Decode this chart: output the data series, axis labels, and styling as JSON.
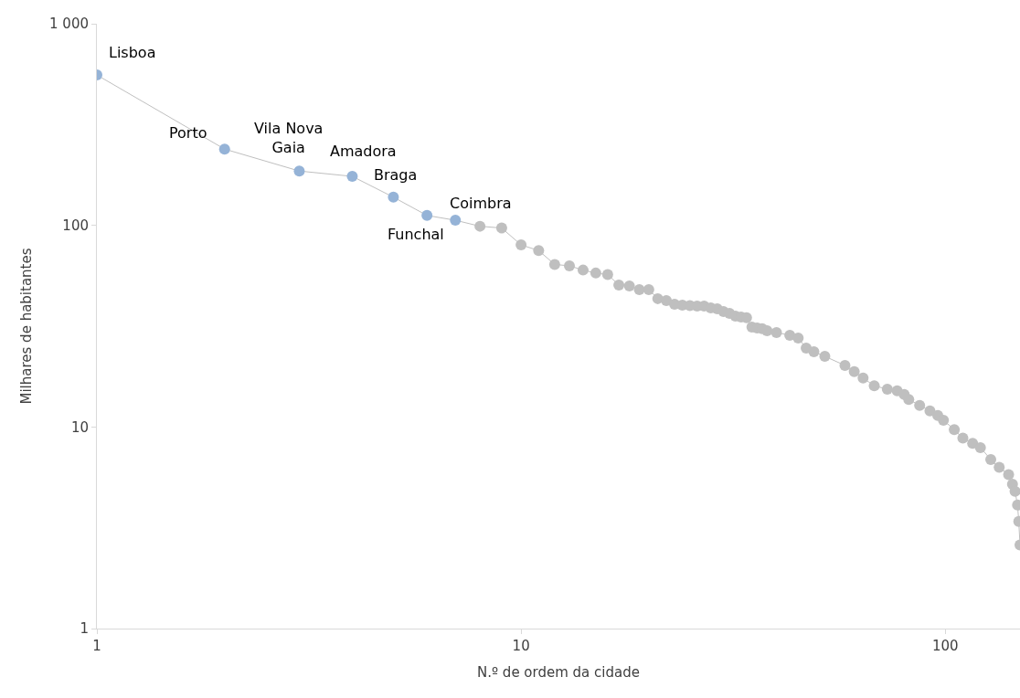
{
  "chart_data": {
    "type": "line",
    "xlabel": "N.º de ordem da cidade",
    "ylabel": "Milhares de habitantes",
    "log": "xy",
    "marker": "circle",
    "line_style": "solid",
    "xlim": [
      1,
      150
    ],
    "xticks": [
      1,
      10,
      100
    ],
    "ylim": [
      1,
      1000
    ],
    "yticks": [
      1,
      10,
      100,
      {
        "value": 1000,
        "label": "1 000"
      }
    ],
    "series": [
      {
        "color": "#bfbfbf",
        "x": [
          1,
          2,
          3,
          4,
          5,
          6,
          7,
          8,
          9,
          10,
          11,
          12,
          13,
          14,
          15,
          16,
          17,
          18,
          19,
          20,
          21,
          22,
          23,
          24,
          25,
          26,
          27,
          28,
          29,
          30,
          31,
          32,
          33,
          34,
          35,
          36,
          37,
          38,
          40,
          43,
          45,
          47,
          49,
          52,
          58,
          61,
          64,
          68,
          73,
          77,
          80,
          82,
          87,
          92,
          96,
          99,
          105,
          110,
          116,
          121,
          128,
          134,
          141,
          144,
          146,
          148,
          149,
          150
        ],
        "values": [
          557,
          239,
          186,
          175,
          138,
          112,
          106,
          99,
          97,
          80,
          75,
          64,
          63,
          60,
          58,
          57,
          50.6,
          50.1,
          48,
          48,
          43.3,
          42.4,
          40.6,
          40.2,
          40,
          39.8,
          39.8,
          39,
          38.6,
          37.4,
          36.6,
          35.5,
          35.1,
          34.8,
          31.3,
          31,
          30.7,
          30,
          29.4,
          28.5,
          27.6,
          24.6,
          23.6,
          22.4,
          20.2,
          18.8,
          17.5,
          16,
          15.4,
          15.1,
          14.5,
          13.7,
          12.8,
          12,
          11.4,
          10.8,
          9.7,
          8.8,
          8.3,
          7.9,
          6.9,
          6.3,
          5.8,
          5.2,
          4.8,
          4.1,
          3.4,
          2.6
        ],
        "colors": [
          "#95b3d7",
          "#95b3d7",
          "#95b3d7",
          "#95b3d7",
          "#95b3d7",
          "#95b3d7",
          "#95b3d7",
          "#bfbfbf",
          "#bfbfbf",
          "#bfbfbf",
          "#bfbfbf",
          "#bfbfbf",
          "#bfbfbf",
          "#bfbfbf",
          "#bfbfbf",
          "#bfbfbf",
          "#bfbfbf",
          "#bfbfbf",
          "#bfbfbf",
          "#bfbfbf",
          "#bfbfbf",
          "#bfbfbf",
          "#bfbfbf",
          "#bfbfbf",
          "#bfbfbf",
          "#bfbfbf",
          "#bfbfbf",
          "#bfbfbf",
          "#bfbfbf",
          "#bfbfbf",
          "#bfbfbf",
          "#bfbfbf",
          "#bfbfbf",
          "#bfbfbf",
          "#bfbfbf",
          "#bfbfbf",
          "#bfbfbf",
          "#bfbfbf",
          "#bfbfbf",
          "#bfbfbf",
          "#bfbfbf",
          "#bfbfbf",
          "#bfbfbf",
          "#bfbfbf",
          "#bfbfbf",
          "#bfbfbf",
          "#bfbfbf",
          "#bfbfbf",
          "#bfbfbf",
          "#bfbfbf",
          "#bfbfbf",
          "#bfbfbf",
          "#bfbfbf",
          "#bfbfbf",
          "#bfbfbf",
          "#bfbfbf",
          "#bfbfbf",
          "#bfbfbf",
          "#bfbfbf",
          "#bfbfbf",
          "#bfbfbf",
          "#bfbfbf",
          "#bfbfbf",
          "#bfbfbf",
          "#bfbfbf",
          "#bfbfbf",
          "#bfbfbf",
          "#bfbfbf"
        ]
      }
    ],
    "annotations": [
      {
        "text": "Lisboa",
        "x": 1,
        "y": 557
      },
      {
        "text": "Porto",
        "x": 2,
        "y": 239
      },
      {
        "text": "Vila Nova\nGaia",
        "x": 3,
        "y": 186
      },
      {
        "text": "Amadora",
        "x": 4,
        "y": 175
      },
      {
        "text": "Braga",
        "x": 5,
        "y": 138
      },
      {
        "text": "Funchal",
        "x": 6,
        "y": 112
      },
      {
        "text": "Coimbra",
        "x": 7,
        "y": 106
      }
    ]
  }
}
